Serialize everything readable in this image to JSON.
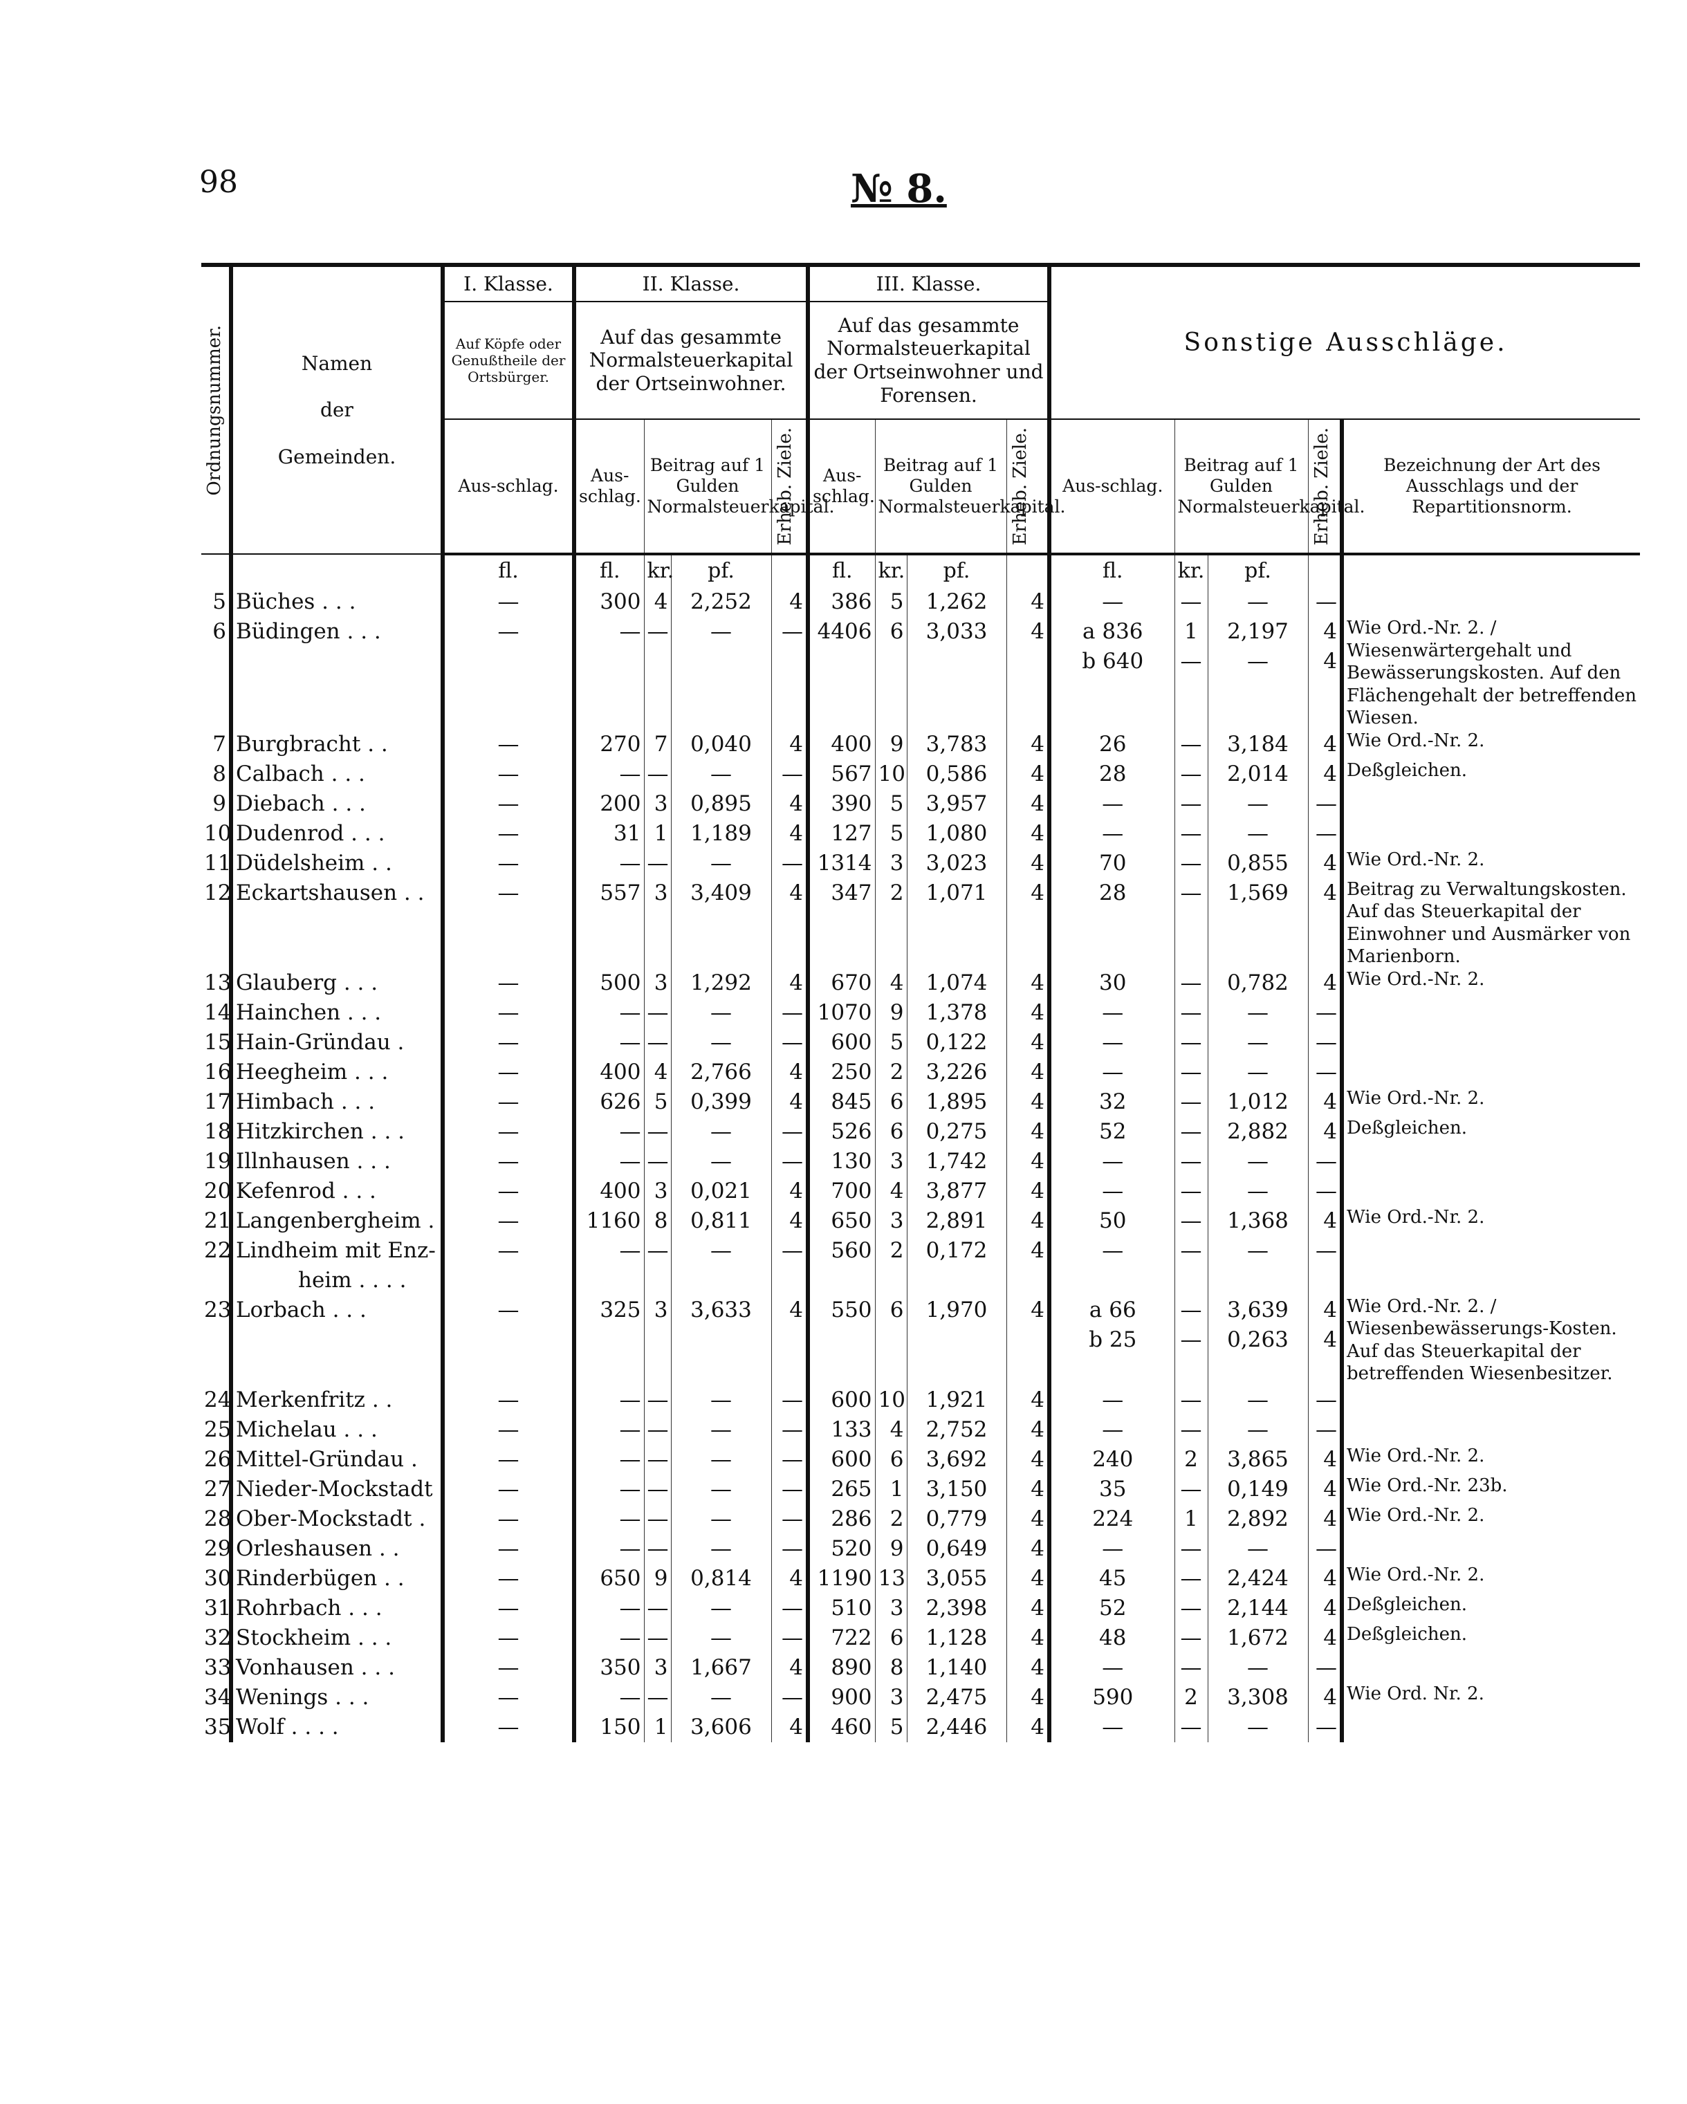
{
  "page_number": "98",
  "title": "№ 8.",
  "header": {
    "ordnungsnummer": "Ordnungsnummer.",
    "namen": [
      "Namen",
      "der",
      "Gemeinden."
    ],
    "klasse1": "I. Klasse.",
    "klasse2": "II. Klasse.",
    "klasse3": "III. Klasse.",
    "sonstige": "Sonstige Ausschläge.",
    "k1_desc": "Auf Köpfe oder Genußtheile der Ortsbürger.",
    "k2_desc": "Auf das gesammte Normalsteuerkapital der Ortseinwohner.",
    "k3_desc": "Auf das gesammte Normalsteuerkapital der Ortseinwohner und Forensen.",
    "ausschlag": "Aus-schlag.",
    "beitrag": "Beitrag auf 1 Gulden Normalsteuerkapital.",
    "ziele": "Erheb. Ziele.",
    "bezeichnung": "Bezeichnung der Art des Ausschlags und der Repartitionsnorm.",
    "fl": "fl.",
    "kr": "kr.",
    "pf": "pf."
  },
  "rows": [
    {
      "n": "5",
      "name": [
        "Büches . . ."
      ],
      "k1": "—",
      "k2": [
        "300",
        "4",
        "2,252",
        "4"
      ],
      "k3": [
        "386",
        "5",
        "1,262",
        "4"
      ],
      "s": [
        [
          "",
          "—",
          "—",
          "—",
          "—"
        ]
      ],
      "note": ""
    },
    {
      "n": "6",
      "name": [
        "Büdingen . . ."
      ],
      "k1": "—",
      "k2": [
        "—",
        "—",
        "—",
        "—"
      ],
      "k3": [
        "4406",
        "6",
        "3,033",
        "4"
      ],
      "s": [
        [
          "a",
          "836",
          "1",
          "2,197",
          "4"
        ],
        [
          "b",
          "640",
          "—",
          "—",
          "4"
        ]
      ],
      "note": "Wie Ord.-Nr. 2. / Wiesenwärtergehalt und Bewässerungskosten. Auf den Flächengehalt der betreffenden Wiesen."
    },
    {
      "n": "7",
      "name": [
        "Burgbracht . ."
      ],
      "k1": "—",
      "k2": [
        "270",
        "7",
        "0,040",
        "4"
      ],
      "k3": [
        "400",
        "9",
        "3,783",
        "4"
      ],
      "s": [
        [
          "",
          "26",
          "—",
          "3,184",
          "4"
        ]
      ],
      "note": "Wie Ord.-Nr. 2."
    },
    {
      "n": "8",
      "name": [
        "Calbach . . ."
      ],
      "k1": "—",
      "k2": [
        "—",
        "—",
        "—",
        "—"
      ],
      "k3": [
        "567",
        "10",
        "0,586",
        "4"
      ],
      "s": [
        [
          "",
          "28",
          "—",
          "2,014",
          "4"
        ]
      ],
      "note": "Deßgleichen."
    },
    {
      "n": "9",
      "name": [
        "Diebach . . ."
      ],
      "k1": "—",
      "k2": [
        "200",
        "3",
        "0,895",
        "4"
      ],
      "k3": [
        "390",
        "5",
        "3,957",
        "4"
      ],
      "s": [
        [
          "",
          "—",
          "—",
          "—",
          "—"
        ]
      ],
      "note": ""
    },
    {
      "n": "10",
      "name": [
        "Dudenrod . . ."
      ],
      "k1": "—",
      "k2": [
        "31",
        "1",
        "1,189",
        "4"
      ],
      "k3": [
        "127",
        "5",
        "1,080",
        "4"
      ],
      "s": [
        [
          "",
          "—",
          "—",
          "—",
          "—"
        ]
      ],
      "note": ""
    },
    {
      "n": "11",
      "name": [
        "Düdelsheim . ."
      ],
      "k1": "—",
      "k2": [
        "—",
        "—",
        "—",
        "—"
      ],
      "k3": [
        "1314",
        "3",
        "3,023",
        "4"
      ],
      "s": [
        [
          "",
          "70",
          "—",
          "0,855",
          "4"
        ]
      ],
      "note": "Wie Ord.-Nr. 2."
    },
    {
      "n": "12",
      "name": [
        "Eckartshausen . ."
      ],
      "k1": "—",
      "k2": [
        "557",
        "3",
        "3,409",
        "4"
      ],
      "k3": [
        "347",
        "2",
        "1,071",
        "4"
      ],
      "s": [
        [
          "",
          "28",
          "—",
          "1,569",
          "4"
        ]
      ],
      "note": "Beitrag zu Verwaltungskosten. Auf das Steuerkapital der Einwohner und Ausmärker von Marienborn."
    },
    {
      "n": "13",
      "name": [
        "Glauberg . . ."
      ],
      "k1": "—",
      "k2": [
        "500",
        "3",
        "1,292",
        "4"
      ],
      "k3": [
        "670",
        "4",
        "1,074",
        "4"
      ],
      "s": [
        [
          "",
          "30",
          "—",
          "0,782",
          "4"
        ]
      ],
      "note": "Wie Ord.-Nr. 2."
    },
    {
      "n": "14",
      "name": [
        "Hainchen . . ."
      ],
      "k1": "—",
      "k2": [
        "—",
        "—",
        "—",
        "—"
      ],
      "k3": [
        "1070",
        "9",
        "1,378",
        "4"
      ],
      "s": [
        [
          "",
          "—",
          "—",
          "—",
          "—"
        ]
      ],
      "note": ""
    },
    {
      "n": "15",
      "name": [
        "Hain-Gründau ."
      ],
      "k1": "—",
      "k2": [
        "—",
        "—",
        "—",
        "—"
      ],
      "k3": [
        "600",
        "5",
        "0,122",
        "4"
      ],
      "s": [
        [
          "",
          "—",
          "—",
          "—",
          "—"
        ]
      ],
      "note": ""
    },
    {
      "n": "16",
      "name": [
        "Heegheim . . ."
      ],
      "k1": "—",
      "k2": [
        "400",
        "4",
        "2,766",
        "4"
      ],
      "k3": [
        "250",
        "2",
        "3,226",
        "4"
      ],
      "s": [
        [
          "",
          "—",
          "—",
          "—",
          "—"
        ]
      ],
      "note": ""
    },
    {
      "n": "17",
      "name": [
        "Himbach . . ."
      ],
      "k1": "—",
      "k2": [
        "626",
        "5",
        "0,399",
        "4"
      ],
      "k3": [
        "845",
        "6",
        "1,895",
        "4"
      ],
      "s": [
        [
          "",
          "32",
          "—",
          "1,012",
          "4"
        ]
      ],
      "note": "Wie Ord.-Nr. 2."
    },
    {
      "n": "18",
      "name": [
        "Hitzkirchen . . ."
      ],
      "k1": "—",
      "k2": [
        "—",
        "—",
        "—",
        "—"
      ],
      "k3": [
        "526",
        "6",
        "0,275",
        "4"
      ],
      "s": [
        [
          "",
          "52",
          "—",
          "2,882",
          "4"
        ]
      ],
      "note": "Deßgleichen."
    },
    {
      "n": "19",
      "name": [
        "Illnhausen . . ."
      ],
      "k1": "—",
      "k2": [
        "—",
        "—",
        "—",
        "—"
      ],
      "k3": [
        "130",
        "3",
        "1,742",
        "4"
      ],
      "s": [
        [
          "",
          "—",
          "—",
          "—",
          "—"
        ]
      ],
      "note": ""
    },
    {
      "n": "20",
      "name": [
        "Kefenrod . . ."
      ],
      "k1": "—",
      "k2": [
        "400",
        "3",
        "0,021",
        "4"
      ],
      "k3": [
        "700",
        "4",
        "3,877",
        "4"
      ],
      "s": [
        [
          "",
          "—",
          "—",
          "—",
          "—"
        ]
      ],
      "note": ""
    },
    {
      "n": "21",
      "name": [
        "Langenbergheim ."
      ],
      "k1": "—",
      "k2": [
        "1160",
        "8",
        "0,811",
        "4"
      ],
      "k3": [
        "650",
        "3",
        "2,891",
        "4"
      ],
      "s": [
        [
          "",
          "50",
          "—",
          "1,368",
          "4"
        ]
      ],
      "note": "Wie Ord.-Nr. 2."
    },
    {
      "n": "22",
      "name": [
        "Lindheim mit Enz-",
        "heim . . . ."
      ],
      "k1": "—",
      "k2": [
        "—",
        "—",
        "—",
        "—"
      ],
      "k3": [
        "560",
        "2",
        "0,172",
        "4"
      ],
      "s": [
        [
          "",
          "—",
          "—",
          "—",
          "—"
        ]
      ],
      "note": ""
    },
    {
      "n": "23",
      "name": [
        "Lorbach . . ."
      ],
      "k1": "—",
      "k2": [
        "325",
        "3",
        "3,633",
        "4"
      ],
      "k3": [
        "550",
        "6",
        "1,970",
        "4"
      ],
      "s": [
        [
          "a",
          "66",
          "—",
          "3,639",
          "4"
        ],
        [
          "b",
          "25",
          "—",
          "0,263",
          "4"
        ]
      ],
      "note": "Wie Ord.-Nr. 2. / Wiesenbewässerungs-Kosten. Auf das Steuerkapital der betreffenden Wiesenbesitzer."
    },
    {
      "n": "24",
      "name": [
        "Merkenfritz . ."
      ],
      "k1": "—",
      "k2": [
        "—",
        "—",
        "—",
        "—"
      ],
      "k3": [
        "600",
        "10",
        "1,921",
        "4"
      ],
      "s": [
        [
          "",
          "—",
          "—",
          "—",
          "—"
        ]
      ],
      "note": ""
    },
    {
      "n": "25",
      "name": [
        "Michelau . . ."
      ],
      "k1": "—",
      "k2": [
        "—",
        "—",
        "—",
        "—"
      ],
      "k3": [
        "133",
        "4",
        "2,752",
        "4"
      ],
      "s": [
        [
          "",
          "—",
          "—",
          "—",
          "—"
        ]
      ],
      "note": ""
    },
    {
      "n": "26",
      "name": [
        "Mittel-Gründau ."
      ],
      "k1": "—",
      "k2": [
        "—",
        "—",
        "—",
        "—"
      ],
      "k3": [
        "600",
        "6",
        "3,692",
        "4"
      ],
      "s": [
        [
          "",
          "240",
          "2",
          "3,865",
          "4"
        ]
      ],
      "note": "Wie Ord.-Nr. 2."
    },
    {
      "n": "27",
      "name": [
        "Nieder-Mockstadt ."
      ],
      "k1": "—",
      "k2": [
        "—",
        "—",
        "—",
        "—"
      ],
      "k3": [
        "265",
        "1",
        "3,150",
        "4"
      ],
      "s": [
        [
          "",
          "35",
          "—",
          "0,149",
          "4"
        ]
      ],
      "note": "Wie Ord.-Nr. 23b."
    },
    {
      "n": "28",
      "name": [
        "Ober-Mockstadt ."
      ],
      "k1": "—",
      "k2": [
        "—",
        "—",
        "—",
        "—"
      ],
      "k3": [
        "286",
        "2",
        "0,779",
        "4"
      ],
      "s": [
        [
          "",
          "224",
          "1",
          "2,892",
          "4"
        ]
      ],
      "note": "Wie Ord.-Nr. 2."
    },
    {
      "n": "29",
      "name": [
        "Orleshausen . ."
      ],
      "k1": "—",
      "k2": [
        "—",
        "—",
        "—",
        "—"
      ],
      "k3": [
        "520",
        "9",
        "0,649",
        "4"
      ],
      "s": [
        [
          "",
          "—",
          "—",
          "—",
          "—"
        ]
      ],
      "note": ""
    },
    {
      "n": "30",
      "name": [
        "Rinderbügen . ."
      ],
      "k1": "—",
      "k2": [
        "650",
        "9",
        "0,814",
        "4"
      ],
      "k3": [
        "1190",
        "13",
        "3,055",
        "4"
      ],
      "s": [
        [
          "",
          "45",
          "—",
          "2,424",
          "4"
        ]
      ],
      "note": "Wie Ord.-Nr. 2."
    },
    {
      "n": "31",
      "name": [
        "Rohrbach . . ."
      ],
      "k1": "—",
      "k2": [
        "—",
        "—",
        "—",
        "—"
      ],
      "k3": [
        "510",
        "3",
        "2,398",
        "4"
      ],
      "s": [
        [
          "",
          "52",
          "—",
          "2,144",
          "4"
        ]
      ],
      "note": "Deßgleichen."
    },
    {
      "n": "32",
      "name": [
        "Stockheim . . ."
      ],
      "k1": "—",
      "k2": [
        "—",
        "—",
        "—",
        "—"
      ],
      "k3": [
        "722",
        "6",
        "1,128",
        "4"
      ],
      "s": [
        [
          "",
          "48",
          "—",
          "1,672",
          "4"
        ]
      ],
      "note": "Deßgleichen."
    },
    {
      "n": "33",
      "name": [
        "Vonhausen . . ."
      ],
      "k1": "—",
      "k2": [
        "350",
        "3",
        "1,667",
        "4"
      ],
      "k3": [
        "890",
        "8",
        "1,140",
        "4"
      ],
      "s": [
        [
          "",
          "—",
          "—",
          "—",
          "—"
        ]
      ],
      "note": ""
    },
    {
      "n": "34",
      "name": [
        "Wenings . . ."
      ],
      "k1": "—",
      "k2": [
        "—",
        "—",
        "—",
        "—"
      ],
      "k3": [
        "900",
        "3",
        "2,475",
        "4"
      ],
      "s": [
        [
          "",
          "590",
          "2",
          "3,308",
          "4"
        ]
      ],
      "note": "Wie Ord. Nr. 2."
    },
    {
      "n": "35",
      "name": [
        "Wolf . . . ."
      ],
      "k1": "—",
      "k2": [
        "150",
        "1",
        "3,606",
        "4"
      ],
      "k3": [
        "460",
        "5",
        "2,446",
        "4"
      ],
      "s": [
        [
          "",
          "—",
          "—",
          "—",
          "—"
        ]
      ],
      "note": ""
    }
  ]
}
